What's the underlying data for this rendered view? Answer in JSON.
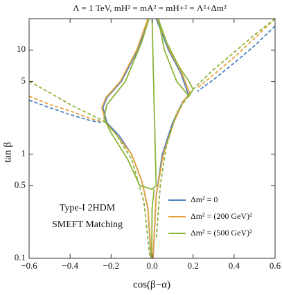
{
  "chart_data": {
    "type": "line",
    "title": "Λ = 1 TeV,  mH² = mA² = mH+² = Λ²+Δm²",
    "x_label": "cos(β−α)",
    "y_label": "tan β",
    "annotations": [
      "Type-I 2HDM",
      "SMEFT Matching"
    ],
    "xlim": [
      -0.6,
      0.6
    ],
    "xticks": [
      {
        "value": -0.6,
        "label": "−0.6"
      },
      {
        "value": -0.4,
        "label": "−0.4"
      },
      {
        "value": -0.2,
        "label": "−0.2"
      },
      {
        "value": 0,
        "label": "0.0"
      },
      0.2,
      0.4,
      0.6
    ],
    "ylim": [
      0.1,
      20
    ],
    "yticks": [
      0.1,
      0.5,
      1,
      5,
      10
    ],
    "y_scale": "log",
    "legend": "lower right",
    "series": [
      {
        "name": "Δm² = 0",
        "color": "#4a7fc1",
        "lines": [
          {
            "style": "solid",
            "x": [
              -0.005,
              -0.02,
              -0.05,
              -0.1,
              -0.16,
              -0.22,
              -0.24,
              -0.22,
              -0.15,
              -0.07,
              -0.015
            ],
            "values": [
              0.1,
              0.3,
              0.55,
              1,
              1.5,
              2,
              2.8,
              3.5,
              5,
              10,
              20
            ]
          },
          {
            "style": "solid",
            "x": [
              0.02,
              0.08,
              0.14,
              0.178,
              0.15,
              0.1,
              0.05,
              0.02,
              0.005
            ],
            "values": [
              20,
              10,
              6,
              3.7,
              3.2,
              2,
              1,
              0.4,
              0.1
            ]
          },
          {
            "style": "dashed",
            "x": [
              -0.6,
              -0.5,
              -0.4,
              -0.3,
              -0.24
            ],
            "values": [
              3.3,
              2.8,
              2.4,
              2.1,
              2.0
            ]
          },
          {
            "style": "dashed",
            "x": [
              0.6,
              0.5,
              0.4,
              0.3,
              0.22
            ],
            "values": [
              17,
              11,
              7.5,
              5.2,
              4
            ]
          }
        ]
      },
      {
        "name": "Δm² = (200 GeV)²",
        "color": "#e8a13a",
        "lines": [
          {
            "style": "solid",
            "x": [
              -0.003,
              -0.02,
              -0.05,
              -0.1,
              -0.17,
              -0.225,
              -0.245,
              -0.225,
              -0.155,
              -0.075,
              -0.02
            ],
            "values": [
              0.1,
              0.3,
              0.55,
              1,
              1.5,
              2,
              2.8,
              3.5,
              5,
              10,
              20
            ]
          },
          {
            "style": "solid",
            "x": [
              0.025,
              0.085,
              0.145,
              0.185,
              0.155,
              0.105,
              0.055,
              0.02,
              0.004
            ],
            "values": [
              20,
              10,
              6,
              3.8,
              3.3,
              2,
              1,
              0.4,
              0.1
            ]
          },
          {
            "style": "dashed",
            "x": [
              -0.6,
              -0.5,
              -0.4,
              -0.3,
              -0.24
            ],
            "values": [
              3.6,
              3.0,
              2.6,
              2.2,
              2.05
            ]
          },
          {
            "style": "dashed",
            "x": [
              0.6,
              0.5,
              0.4,
              0.3,
              0.22
            ],
            "values": [
              20,
              13,
              8.5,
              5.8,
              4.3
            ]
          }
        ]
      },
      {
        "name": "Δm² = (500 GeV)²",
        "color": "#8db33a",
        "lines": [
          {
            "style": "solid",
            "x": [
              -0.015,
              -0.05,
              -0.13,
              -0.22,
              -0.235,
              -0.2,
              -0.12,
              -0.06,
              0,
              0.02,
              0.01,
              0.0
            ],
            "values": [
              20,
              12,
              5,
              3,
              2.2,
              1.6,
              0.9,
              0.5,
              0.46,
              0.5,
              3,
              20
            ]
          },
          {
            "style": "solid",
            "x": [
              0.03,
              0.07,
              0.13,
              0.18,
              0.2,
              0.18,
              0.12,
              0.06,
              0.03
            ],
            "values": [
              20,
              12,
              7,
              5,
              4.2,
              3.6,
              5,
              10,
              20
            ]
          },
          {
            "style": "solid",
            "x": [
              -0.002,
              0.0,
              0.01
            ],
            "values": [
              0.1,
              0.3,
              0.46
            ]
          },
          {
            "style": "dashed",
            "x": [
              -0.6,
              -0.5,
              -0.4,
              -0.3,
              -0.24,
              -0.18,
              -0.1,
              -0.04,
              -0.01
            ],
            "values": [
              5,
              3.9,
              3,
              2.4,
              2.1,
              1.6,
              0.9,
              0.35,
              0.1
            ]
          },
          {
            "style": "dashed",
            "x": [
              0.6,
              0.5,
              0.4,
              0.3,
              0.2,
              0.12,
              0.07,
              0.04,
              0.02
            ],
            "values": [
              20,
              14,
              9.5,
              6.5,
              4.2,
              2.5,
              1.2,
              0.5,
              0.15
            ]
          }
        ]
      }
    ]
  }
}
